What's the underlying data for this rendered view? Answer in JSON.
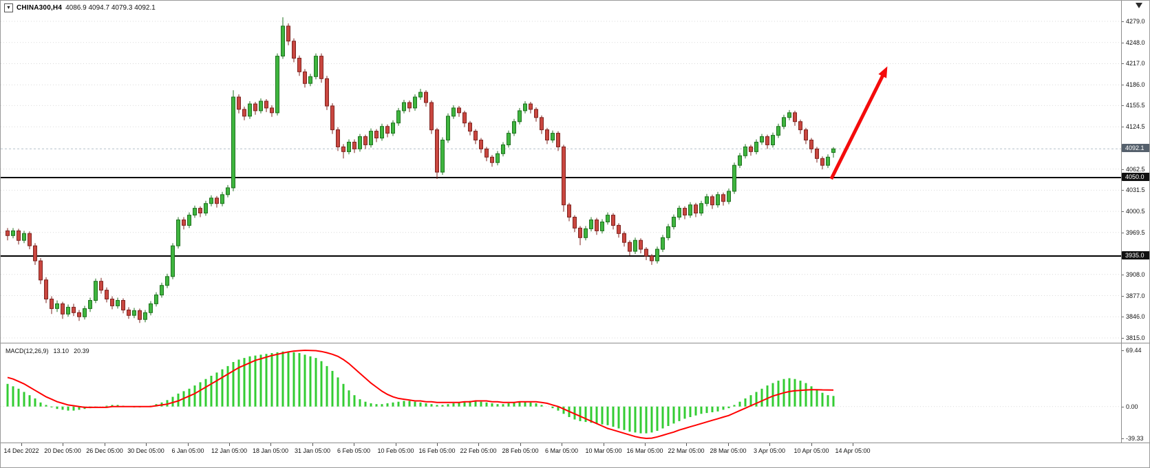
{
  "symbol_bar": {
    "dropdown_icon": "▼",
    "symbol": "CHINA300,H4",
    "ohlc": "4086.9 4094.7 4079.3 4092.1"
  },
  "macd": {
    "label": "MACD(12,26,9)",
    "value_main": "13.10",
    "value_signal": "20.39",
    "axis_ticks": [
      "69.44",
      "0.00",
      "-39.33"
    ]
  },
  "time_axis": {
    "labels": [
      "14 Dec 2022",
      "20 Dec 05:00",
      "26 Dec 05:00",
      "30 Dec 05:00",
      "6 Jan 05:00",
      "12 Jan 05:00",
      "18 Jan 05:00",
      "31 Jan 05:00",
      "6 Feb 05:00",
      "10 Feb 05:00",
      "16 Feb 05:00",
      "22 Feb 05:00",
      "28 Feb 05:00",
      "6 Mar 05:00",
      "10 Mar 05:00",
      "16 Mar 05:00",
      "22 Mar 05:00",
      "28 Mar 05:00",
      "3 Apr 05:00",
      "10 Apr 05:00",
      "14 Apr 05:00"
    ]
  },
  "chart_data": {
    "type": "candlestick",
    "title": "CHINA300,H4",
    "timeframe": "H4",
    "colors": {
      "up_fill": "#3fb53f",
      "up_stroke": "#1d701d",
      "down_fill": "#c94740",
      "down_stroke": "#7e221e",
      "grid": "#d9d9d9",
      "current_price_line": "#b4c0ca",
      "macd_hist": "#33cc33",
      "macd_signal": "#ff0000",
      "current_badge": "#55606c",
      "level_badge": "#111111"
    },
    "main": {
      "ylim": [
        3815.0,
        4279.0
      ],
      "price_ticks": [
        "4279.0",
        "4248.0",
        "4217.0",
        "4186.0",
        "4155.5",
        "4124.5",
        "4062.5",
        "4031.5",
        "4000.5",
        "3969.5",
        "3908.0",
        "3877.0",
        "3846.0",
        "3815.0"
      ],
      "price_badges": [
        {
          "label": "4092.1",
          "value": 4092.1,
          "color": "#55606c"
        },
        {
          "label": "4050.0",
          "value": 4050.0,
          "color": "#111111"
        },
        {
          "label": "3935.0",
          "value": 3935.0,
          "color": "#111111"
        }
      ],
      "current_price": 4092.1,
      "hlines": [
        {
          "value": 4050.0,
          "color": "#000000",
          "width": 2
        },
        {
          "value": 3935.0,
          "color": "#000000",
          "width": 2
        }
      ],
      "arrow": {
        "from_bar": 149.6,
        "from_price": 4048,
        "to_bar": 159.8,
        "to_price": 4213,
        "color": "#f40b0b"
      },
      "candles": [
        [
          3972,
          3976,
          3958,
          3965
        ],
        [
          3965,
          3976,
          3961,
          3972
        ],
        [
          3972,
          3975,
          3952,
          3958
        ],
        [
          3958,
          3972,
          3954,
          3968
        ],
        [
          3968,
          3971,
          3945,
          3950
        ],
        [
          3950,
          3954,
          3922,
          3928
        ],
        [
          3928,
          3932,
          3894,
          3900
        ],
        [
          3900,
          3904,
          3866,
          3872
        ],
        [
          3872,
          3876,
          3850,
          3858
        ],
        [
          3858,
          3870,
          3853,
          3865
        ],
        [
          3865,
          3868,
          3843,
          3850
        ],
        [
          3850,
          3864,
          3846,
          3860
        ],
        [
          3860,
          3865,
          3847,
          3852
        ],
        [
          3852,
          3856,
          3840,
          3846
        ],
        [
          3846,
          3862,
          3842,
          3858
        ],
        [
          3858,
          3874,
          3853,
          3870
        ],
        [
          3870,
          3902,
          3866,
          3898
        ],
        [
          3898,
          3903,
          3880,
          3885
        ],
        [
          3885,
          3889,
          3867,
          3872
        ],
        [
          3872,
          3876,
          3857,
          3862
        ],
        [
          3862,
          3874,
          3858,
          3870
        ],
        [
          3870,
          3873,
          3851,
          3856
        ],
        [
          3856,
          3860,
          3843,
          3848
        ],
        [
          3848,
          3859,
          3844,
          3855
        ],
        [
          3855,
          3858,
          3837,
          3842
        ],
        [
          3842,
          3856,
          3838,
          3852
        ],
        [
          3852,
          3869,
          3848,
          3865
        ],
        [
          3865,
          3882,
          3861,
          3878
        ],
        [
          3878,
          3896,
          3874,
          3892
        ],
        [
          3892,
          3909,
          3888,
          3905
        ],
        [
          3905,
          3954,
          3901,
          3950
        ],
        [
          3950,
          3992,
          3946,
          3988
        ],
        [
          3988,
          3992,
          3974,
          3980
        ],
        [
          3980,
          3999,
          3976,
          3995
        ],
        [
          3995,
          4009,
          3991,
          4005
        ],
        [
          4005,
          4008,
          3992,
          3998
        ],
        [
          3998,
          4016,
          3994,
          4012
        ],
        [
          4012,
          4024,
          4008,
          4020
        ],
        [
          4020,
          4023,
          4006,
          4012
        ],
        [
          4012,
          4029,
          4008,
          4025
        ],
        [
          4025,
          4039,
          4021,
          4035
        ],
        [
          4035,
          4178,
          4030,
          4168
        ],
        [
          4168,
          4172,
          4144,
          4150
        ],
        [
          4150,
          4154,
          4134,
          4140
        ],
        [
          4140,
          4162,
          4136,
          4158
        ],
        [
          4158,
          4161,
          4142,
          4148
        ],
        [
          4148,
          4166,
          4144,
          4162
        ],
        [
          4162,
          4165,
          4146,
          4152
        ],
        [
          4152,
          4156,
          4139,
          4145
        ],
        [
          4145,
          4232,
          4141,
          4228
        ],
        [
          4228,
          4285,
          4224,
          4272
        ],
        [
          4272,
          4276,
          4244,
          4250
        ],
        [
          4250,
          4254,
          4219,
          4225
        ],
        [
          4225,
          4229,
          4199,
          4205
        ],
        [
          4205,
          4209,
          4182,
          4188
        ],
        [
          4188,
          4202,
          4184,
          4198
        ],
        [
          4198,
          4232,
          4194,
          4228
        ],
        [
          4228,
          4232,
          4189,
          4195
        ],
        [
          4195,
          4199,
          4149,
          4155
        ],
        [
          4155,
          4159,
          4114,
          4120
        ],
        [
          4120,
          4124,
          4089,
          4095
        ],
        [
          4095,
          4099,
          4078,
          4088
        ],
        [
          4088,
          4106,
          4084,
          4102
        ],
        [
          4102,
          4106,
          4086,
          4092
        ],
        [
          4092,
          4114,
          4088,
          4110
        ],
        [
          4110,
          4113,
          4092,
          4098
        ],
        [
          4098,
          4122,
          4094,
          4118
        ],
        [
          4118,
          4121,
          4102,
          4108
        ],
        [
          4108,
          4129,
          4104,
          4125
        ],
        [
          4125,
          4128,
          4109,
          4115
        ],
        [
          4115,
          4134,
          4111,
          4130
        ],
        [
          4130,
          4152,
          4126,
          4148
        ],
        [
          4148,
          4164,
          4144,
          4160
        ],
        [
          4160,
          4163,
          4146,
          4152
        ],
        [
          4152,
          4172,
          4148,
          4168
        ],
        [
          4168,
          4180,
          4164,
          4175
        ],
        [
          4175,
          4178,
          4154,
          4160
        ],
        [
          4160,
          4163,
          4114,
          4120
        ],
        [
          4120,
          4123,
          4048,
          4058
        ],
        [
          4058,
          4109,
          4054,
          4105
        ],
        [
          4105,
          4144,
          4101,
          4140
        ],
        [
          4140,
          4156,
          4136,
          4152
        ],
        [
          4152,
          4155,
          4139,
          4145
        ],
        [
          4145,
          4148,
          4124,
          4130
        ],
        [
          4130,
          4133,
          4112,
          4118
        ],
        [
          4118,
          4121,
          4099,
          4105
        ],
        [
          4105,
          4108,
          4086,
          4092
        ],
        [
          4092,
          4095,
          4074,
          4080
        ],
        [
          4080,
          4083,
          4066,
          4072
        ],
        [
          4072,
          4089,
          4068,
          4085
        ],
        [
          4085,
          4102,
          4081,
          4098
        ],
        [
          4098,
          4119,
          4094,
          4115
        ],
        [
          4115,
          4136,
          4111,
          4132
        ],
        [
          4132,
          4152,
          4128,
          4148
        ],
        [
          4148,
          4162,
          4144,
          4158
        ],
        [
          4158,
          4161,
          4144,
          4150
        ],
        [
          4150,
          4153,
          4132,
          4138
        ],
        [
          4138,
          4141,
          4114,
          4120
        ],
        [
          4120,
          4123,
          4099,
          4105
        ],
        [
          4105,
          4119,
          4101,
          4115
        ],
        [
          4115,
          4118,
          4089,
          4095
        ],
        [
          4095,
          4098,
          4000,
          4010
        ],
        [
          4010,
          4013,
          3986,
          3992
        ],
        [
          3992,
          3995,
          3970,
          3976
        ],
        [
          3976,
          3979,
          3951,
          3962
        ],
        [
          3962,
          3979,
          3958,
          3975
        ],
        [
          3975,
          3992,
          3971,
          3988
        ],
        [
          3988,
          3991,
          3966,
          3972
        ],
        [
          3972,
          3989,
          3968,
          3985
        ],
        [
          3985,
          3999,
          3981,
          3995
        ],
        [
          3995,
          3998,
          3974,
          3980
        ],
        [
          3980,
          3983,
          3962,
          3968
        ],
        [
          3968,
          3971,
          3949,
          3955
        ],
        [
          3955,
          3958,
          3936,
          3942
        ],
        [
          3942,
          3962,
          3938,
          3958
        ],
        [
          3958,
          3961,
          3939,
          3945
        ],
        [
          3945,
          3948,
          3929,
          3935
        ],
        [
          3935,
          3938,
          3922,
          3928
        ],
        [
          3928,
          3949,
          3924,
          3945
        ],
        [
          3945,
          3966,
          3941,
          3962
        ],
        [
          3962,
          3982,
          3958,
          3978
        ],
        [
          3978,
          3996,
          3974,
          3992
        ],
        [
          3992,
          4009,
          3988,
          4005
        ],
        [
          4005,
          4008,
          3989,
          3995
        ],
        [
          3995,
          4014,
          3991,
          4010
        ],
        [
          4010,
          4013,
          3992,
          3998
        ],
        [
          3998,
          4016,
          3994,
          4012
        ],
        [
          4012,
          4026,
          4008,
          4022
        ],
        [
          4022,
          4025,
          4004,
          4010
        ],
        [
          4010,
          4029,
          4006,
          4025
        ],
        [
          4025,
          4028,
          4009,
          4015
        ],
        [
          4015,
          4034,
          4011,
          4030
        ],
        [
          4030,
          4072,
          4026,
          4068
        ],
        [
          4068,
          4086,
          4064,
          4082
        ],
        [
          4082,
          4099,
          4078,
          4095
        ],
        [
          4095,
          4098,
          4082,
          4088
        ],
        [
          4088,
          4106,
          4084,
          4102
        ],
        [
          4102,
          4114,
          4098,
          4110
        ],
        [
          4110,
          4113,
          4092,
          4098
        ],
        [
          4098,
          4116,
          4094,
          4112
        ],
        [
          4112,
          4129,
          4108,
          4125
        ],
        [
          4125,
          4142,
          4121,
          4138
        ],
        [
          4138,
          4149,
          4134,
          4145
        ],
        [
          4145,
          4148,
          4126,
          4132
        ],
        [
          4132,
          4135,
          4114,
          4120
        ],
        [
          4120,
          4123,
          4099,
          4105
        ],
        [
          4105,
          4108,
          4086,
          4092
        ],
        [
          4092,
          4095,
          4072,
          4078
        ],
        [
          4078,
          4081,
          4062,
          4068
        ],
        [
          4068,
          4084,
          4064,
          4080
        ],
        [
          4086.9,
          4094.7,
          4079.3,
          4092.1
        ]
      ]
    },
    "macd_panel": {
      "ylim": [
        -39.33,
        69.44
      ],
      "histogram": [
        28,
        25,
        22,
        18,
        14,
        10,
        5,
        2,
        -1,
        -3,
        -4,
        -5,
        -5,
        -4,
        -3,
        -2,
        -1,
        0,
        1,
        2,
        2,
        1,
        0,
        -1,
        -1,
        0,
        1,
        3,
        5,
        8,
        12,
        16,
        19,
        22,
        26,
        30,
        34,
        38,
        42,
        46,
        50,
        55,
        58,
        60,
        62,
        63,
        64,
        65,
        66,
        67,
        68,
        68,
        67,
        66,
        64,
        62,
        60,
        56,
        50,
        44,
        36,
        28,
        20,
        14,
        9,
        6,
        4,
        3,
        3,
        4,
        5,
        6,
        7,
        7,
        6,
        5,
        4,
        3,
        2,
        2,
        3,
        4,
        5,
        6,
        7,
        7,
        6,
        5,
        4,
        3,
        3,
        4,
        5,
        6,
        6,
        5,
        4,
        2,
        0,
        -2,
        -5,
        -9,
        -13,
        -16,
        -18,
        -19,
        -20,
        -21,
        -22,
        -23,
        -25,
        -27,
        -29,
        -31,
        -32,
        -33,
        -33,
        -32,
        -30,
        -27,
        -24,
        -21,
        -18,
        -15,
        -13,
        -11,
        -9,
        -8,
        -7,
        -6,
        -4,
        -2,
        2,
        6,
        10,
        14,
        18,
        22,
        26,
        29,
        32,
        34,
        35,
        34,
        32,
        29,
        25,
        21,
        17,
        14,
        13.1
      ],
      "signal": [
        36,
        34,
        31,
        28,
        24,
        20,
        16,
        12,
        9,
        6,
        4,
        2,
        1,
        0,
        -1,
        -1,
        -1,
        -1,
        -1,
        0,
        0,
        0,
        0,
        0,
        0,
        0,
        0,
        1,
        2,
        3,
        5,
        7,
        10,
        13,
        16,
        20,
        24,
        28,
        32,
        36,
        40,
        44,
        48,
        51,
        54,
        57,
        59,
        61,
        63,
        64.5,
        66,
        67.5,
        68.5,
        69,
        69.44,
        69.3,
        69,
        68,
        66.5,
        64.5,
        62,
        58,
        53,
        47,
        41,
        35,
        29,
        24,
        19,
        15,
        12,
        10,
        9,
        8,
        7,
        7,
        6,
        6,
        5,
        5,
        5,
        5,
        5,
        6,
        6,
        7,
        7,
        7,
        6,
        6,
        5,
        5,
        5,
        6,
        6,
        6,
        6,
        5,
        4,
        2,
        0,
        -3,
        -6,
        -9,
        -12,
        -15,
        -18,
        -21,
        -24,
        -27,
        -29,
        -31,
        -33,
        -35,
        -37,
        -38.5,
        -39.33,
        -39,
        -37.5,
        -35.5,
        -33.5,
        -31.5,
        -29,
        -27,
        -25,
        -23,
        -21,
        -19,
        -17,
        -15,
        -13,
        -11,
        -8,
        -5,
        -2,
        1,
        4,
        7,
        10,
        13,
        15,
        17,
        18.5,
        19.5,
        20,
        20.5,
        20.8,
        20.8,
        20.6,
        20.5,
        20.39
      ]
    }
  }
}
